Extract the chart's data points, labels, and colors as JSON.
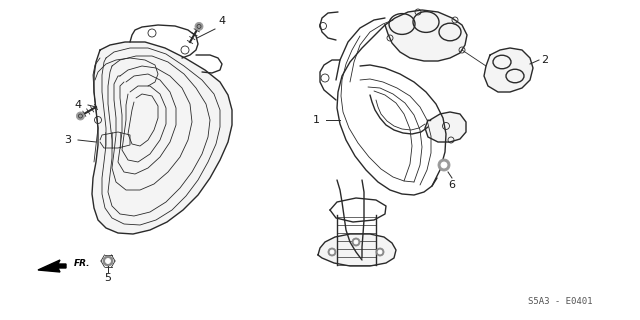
{
  "background_color": "#ffffff",
  "line_color": "#2a2a2a",
  "label_color": "#1a1a1a",
  "part_code": "S5A3 - E0401",
  "figsize": [
    6.4,
    3.2
  ],
  "dpi": 100
}
